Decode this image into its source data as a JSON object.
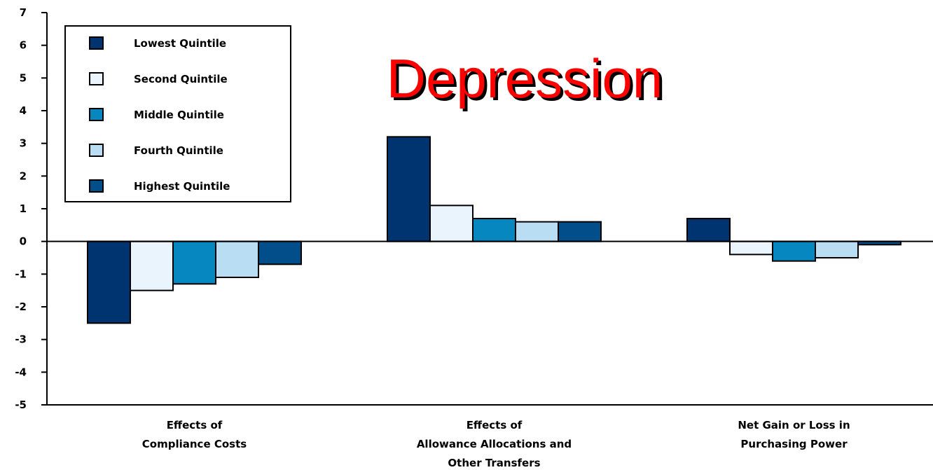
{
  "chart_data": {
    "type": "bar",
    "title": "Depression",
    "categories": [
      [
        "Effects of",
        "Compliance Costs"
      ],
      [
        "Effects of",
        "Allowance Allocations and",
        "Other Transfers"
      ],
      [
        "Net Gain or Loss in",
        "Purchasing Power"
      ]
    ],
    "series": [
      {
        "name": "Lowest Quintile",
        "color": "#003470",
        "values": [
          -2.5,
          3.2,
          0.7
        ]
      },
      {
        "name": "Second Quintile",
        "color": "#eaf4fd",
        "values": [
          -1.5,
          1.1,
          -0.4
        ]
      },
      {
        "name": "Middle Quintile",
        "color": "#0787bf",
        "values": [
          -1.3,
          0.7,
          -0.6
        ]
      },
      {
        "name": "Fourth Quintile",
        "color": "#b9def4",
        "values": [
          -1.1,
          0.6,
          -0.5
        ]
      },
      {
        "name": "Highest Quintile",
        "color": "#024e8a",
        "values": [
          -0.7,
          0.6,
          -0.1
        ]
      }
    ],
    "ylim": [
      -5,
      7
    ],
    "yticks": [
      7,
      6,
      5,
      4,
      3,
      2,
      1,
      0,
      -1,
      -2,
      -3,
      -4,
      -5
    ],
    "legend_position": "top-left",
    "grid": false
  }
}
